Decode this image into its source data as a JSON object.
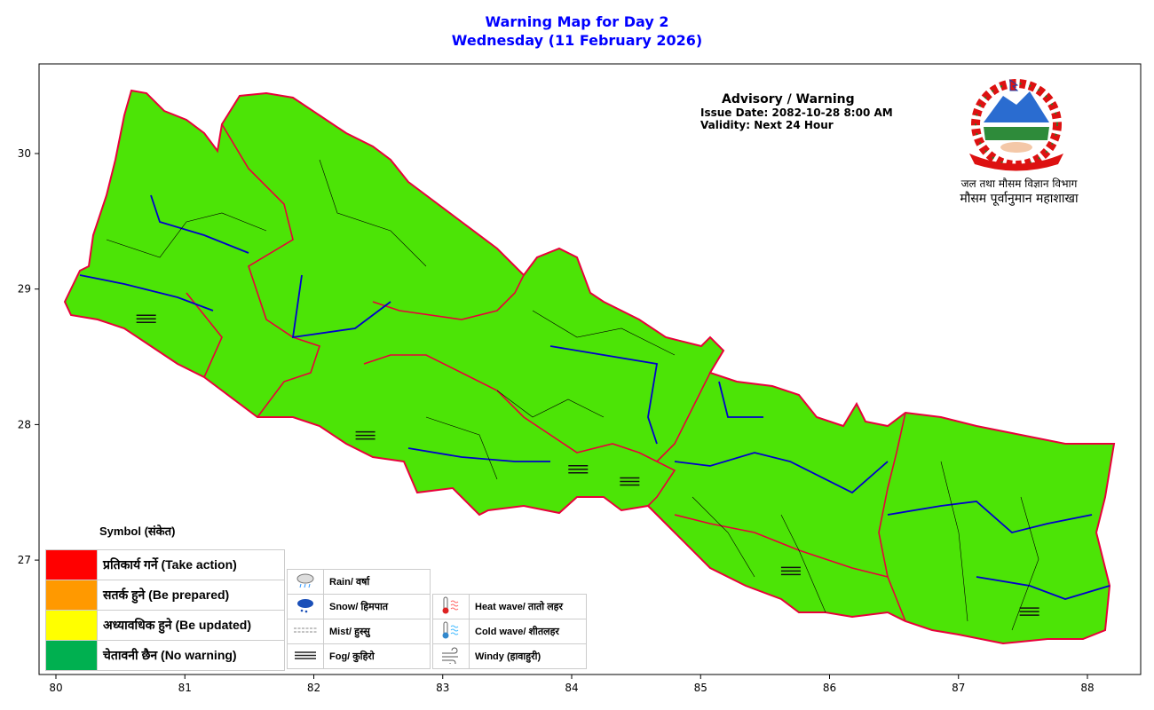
{
  "title": {
    "line1": "Warning Map for Day 2",
    "line2": "Wednesday (11 February 2026)"
  },
  "advisory": {
    "heading": "Advisory / Warning",
    "issue_date": "Issue Date: 2082-10-28 8:00 AM",
    "validity": "Validity: Next 24 Hour"
  },
  "department": {
    "line1": "जल तथा मौसम विज्ञान विभाग",
    "line2": "मौसम पूर्वानुमान महाशाखा"
  },
  "axes": {
    "x_ticks": [
      "80",
      "81",
      "82",
      "83",
      "84",
      "85",
      "86",
      "87",
      "88"
    ],
    "y_ticks": [
      "30",
      "29",
      "28",
      "27"
    ],
    "x_range": [
      79.87,
      88.4
    ],
    "y_range": [
      26.15,
      30.65
    ]
  },
  "map": {
    "fill_color": "#4ce406",
    "province_border_color": "#e8003a",
    "district_line_color": "#0000cc",
    "warning_level": "No warning"
  },
  "map_symbols": [
    {
      "type": "fog",
      "lon": 80.7,
      "lat": 28.78
    },
    {
      "type": "fog",
      "lon": 82.4,
      "lat": 27.92
    },
    {
      "type": "fog",
      "lon": 84.05,
      "lat": 27.67
    },
    {
      "type": "fog",
      "lon": 84.45,
      "lat": 27.58
    },
    {
      "type": "fog",
      "lon": 85.7,
      "lat": 26.92
    },
    {
      "type": "fog",
      "lon": 87.55,
      "lat": 26.62
    }
  ],
  "legend": {
    "title": "Symbol (संकेत)",
    "levels": [
      {
        "label": "प्रतिकार्य गर्ने (Take action)",
        "color": "#ff0000"
      },
      {
        "label": "सतर्क हुने (Be prepared)",
        "color": "#ff9900"
      },
      {
        "label": "अध्यावधिक हुने (Be updated)",
        "color": "#ffff00"
      },
      {
        "label": "चेतावनी छैन (No warning)",
        "color": "#00b050"
      }
    ],
    "symbols_a": [
      {
        "icon": "rain-cloud-icon",
        "label": "Rain/ वर्षा"
      },
      {
        "icon": "snow-cloud-icon",
        "label": "Snow/ हिमपात"
      },
      {
        "icon": "mist-icon",
        "label": "Mist/ हुस्सु"
      },
      {
        "icon": "fog-icon",
        "label": "Fog/ कुहिरो"
      }
    ],
    "symbols_b": [
      {
        "icon": "heat-wave-icon",
        "label": "Heat wave/ तातो लहर"
      },
      {
        "icon": "cold-wave-icon",
        "label": "Cold wave/ शीतलहर"
      },
      {
        "icon": "windy-icon",
        "label": "Windy (हावाहुरी)"
      }
    ]
  }
}
